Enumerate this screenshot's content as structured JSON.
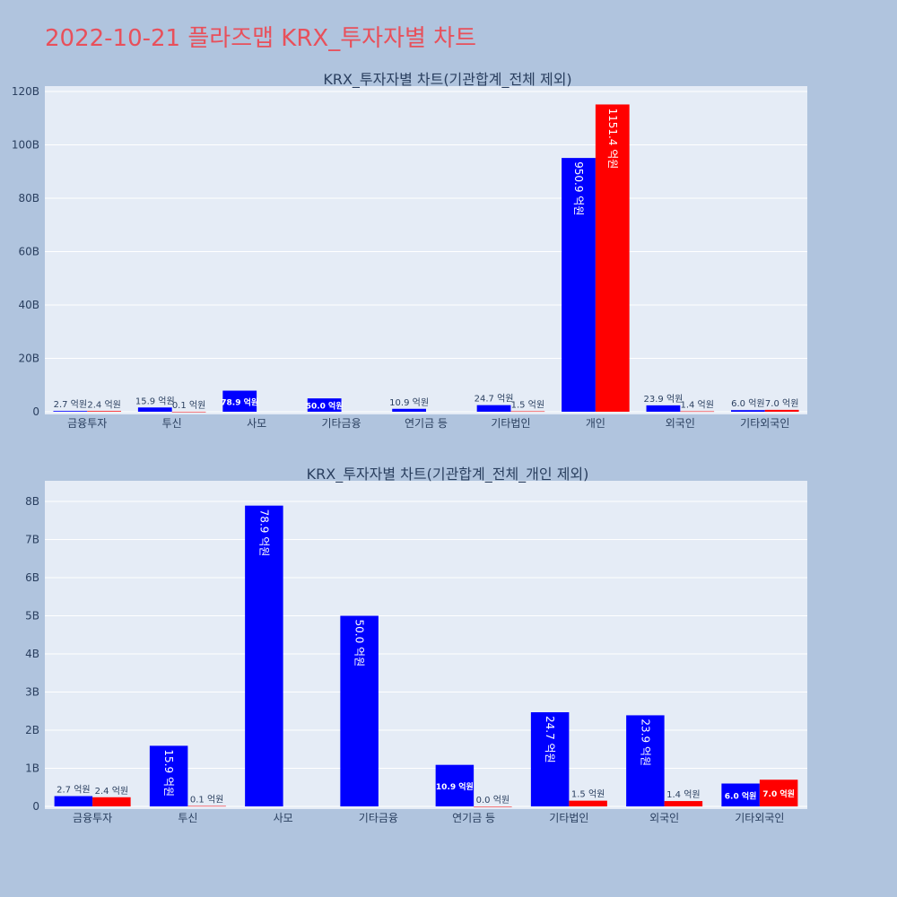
{
  "page_title": "2022-10-21 플라즈맵 KRX_투자자별 차트",
  "colors": {
    "series_a": "#0000ff",
    "series_b": "#ff0000",
    "plot_bg": "#e5ecf6",
    "page_bg": "#b0c4de",
    "title": "#e8505b"
  },
  "chart_data": [
    {
      "type": "bar",
      "title": "KRX_투자자별 차트(기관합계_전체 제외)",
      "categories": [
        "금융투자",
        "투신",
        "사모",
        "기타금융",
        "연기금 등",
        "기타법인",
        "개인",
        "외국인",
        "기타외국인"
      ],
      "series": [
        {
          "color": "#0000ff",
          "values": [
            270000000,
            1590000000,
            7890000000,
            5000000000,
            1090000000,
            2470000000,
            95090000000,
            2390000000,
            600000000
          ],
          "labels": [
            "2.7 억원",
            "15.9 억원",
            "78.9 억원",
            "50.0 억원",
            "10.9 억원",
            "24.7 억원",
            "950.9 억원",
            "23.9 억원",
            "6.0 억원"
          ]
        },
        {
          "color": "#ff0000",
          "values": [
            240000000,
            10000000,
            null,
            null,
            null,
            150000000,
            115140000000,
            140000000,
            700000000
          ],
          "labels": [
            "2.4 억원",
            "0.1 억원",
            "",
            "",
            "",
            "1.5 억원",
            "1151.4 억원",
            "1.4 억원",
            "7.0 억원"
          ]
        }
      ],
      "yticks": [
        "0",
        "20B",
        "40B",
        "60B",
        "80B",
        "100B",
        "120B"
      ],
      "ytick_values": [
        0,
        20000000000,
        40000000000,
        60000000000,
        80000000000,
        100000000000,
        120000000000
      ],
      "ylim": [
        0,
        120000000000
      ],
      "grid": true,
      "legend": "none"
    },
    {
      "type": "bar",
      "title": "KRX_투자자별 차트(기관합계_전체_개인 제외)",
      "categories": [
        "금융투자",
        "투신",
        "사모",
        "기타금융",
        "연기금 등",
        "기타법인",
        "외국인",
        "기타외국인"
      ],
      "series": [
        {
          "color": "#0000ff",
          "values": [
            270000000,
            1590000000,
            7890000000,
            5000000000,
            1090000000,
            2470000000,
            2390000000,
            600000000
          ],
          "labels": [
            "2.7 억원",
            "15.9 억원",
            "78.9 억원",
            "50.0 억원",
            "10.9 억원",
            "24.7 억원",
            "23.9 억원",
            "6.0 억원"
          ]
        },
        {
          "color": "#ff0000",
          "values": [
            240000000,
            10000000,
            null,
            null,
            0,
            150000000,
            140000000,
            700000000
          ],
          "labels": [
            "2.4 억원",
            "0.1 억원",
            "",
            "",
            "0.0 억원",
            "1.5 억원",
            "1.4 억원",
            "7.0 억원"
          ]
        }
      ],
      "yticks": [
        "0",
        "1B",
        "2B",
        "3B",
        "4B",
        "5B",
        "6B",
        "7B",
        "8B"
      ],
      "ytick_values": [
        0,
        1000000000,
        2000000000,
        3000000000,
        4000000000,
        5000000000,
        6000000000,
        7000000000,
        8000000000
      ],
      "ylim": [
        0,
        8400000000
      ],
      "grid": true,
      "legend": "none"
    }
  ]
}
